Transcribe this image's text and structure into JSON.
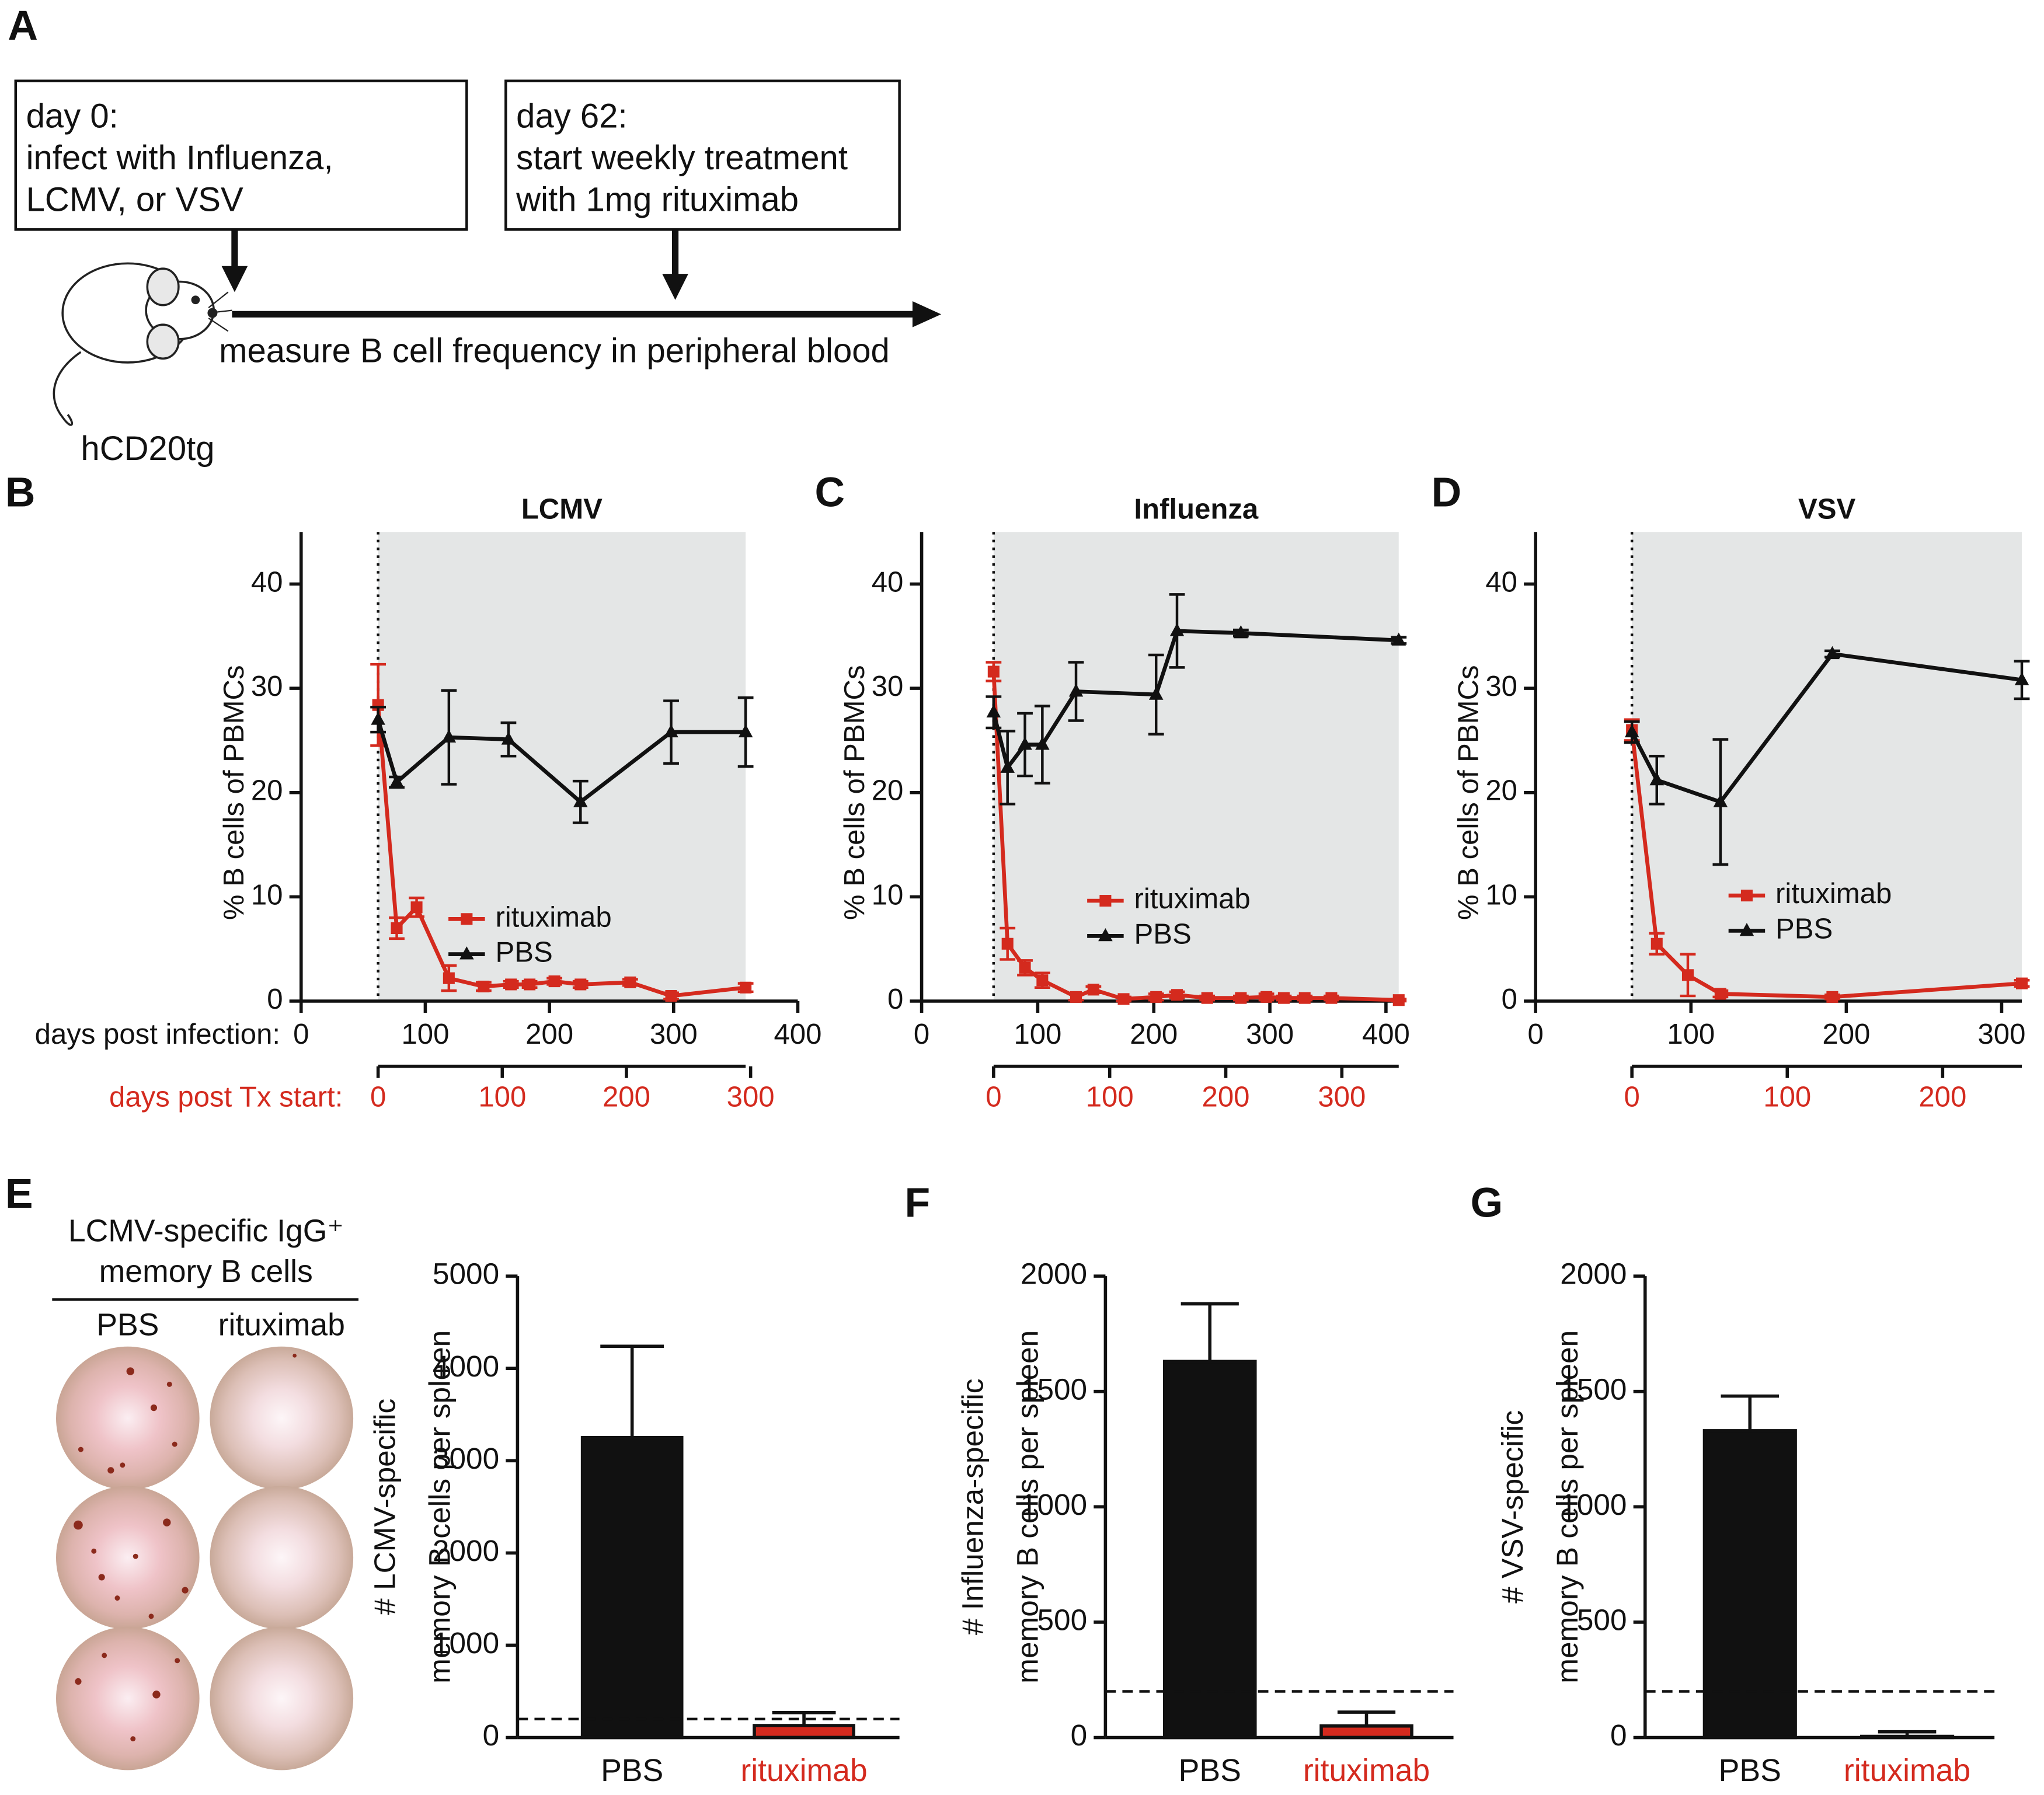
{
  "schematic": {
    "label": "A",
    "box1": [
      "day 0:",
      "infect with Influenza,",
      "LCMV, or VSV"
    ],
    "box2": [
      "day 62:",
      "start weekly treatment",
      "with 1mg rituximab"
    ],
    "timeline_label": "measure B cell frequency in peripheral blood",
    "mouse_label": "hCD20tg"
  },
  "wells": {
    "label": "E",
    "title": [
      "LCMV-specific IgG⁺",
      "memory B cells"
    ],
    "columns": [
      "PBS",
      "rituximab"
    ],
    "column_colors": [
      "#111111",
      "#c0281c"
    ]
  },
  "chart_data": [
    {
      "type": "line",
      "panel": "B",
      "title": "LCMV",
      "ylabel": "% B cells of PBMCs",
      "xlabel": "days post infection:",
      "x2label": "days post Tx start:",
      "x2_color": "#d42a1e",
      "xlim": [
        0,
        400
      ],
      "xticks": [
        0,
        100,
        200,
        300,
        400
      ],
      "x2lim": [
        -62,
        338
      ],
      "x2ticks": [
        0,
        100,
        200,
        300
      ],
      "ylim": [
        0,
        45
      ],
      "yticks": [
        0,
        10,
        20,
        30,
        40
      ],
      "treatment_start": 62,
      "shade_end": 358,
      "shade_color": "#e4e6e6",
      "series": [
        {
          "name": "rituximab",
          "color": "#d42a1e",
          "marker": "square",
          "x": [
            62,
            77,
            93,
            119,
            147,
            169,
            184,
            204,
            225,
            265,
            298,
            358
          ],
          "values": [
            28.4,
            7.0,
            9.0,
            2.2,
            1.4,
            1.6,
            1.6,
            1.9,
            1.6,
            1.8,
            0.5,
            1.3
          ],
          "errors": [
            3.9,
            1.0,
            0.9,
            1.2,
            0.4,
            0.3,
            0.3,
            0.3,
            0.3,
            0.3,
            0.3,
            0.4
          ]
        },
        {
          "name": "PBS",
          "color": "#111111",
          "marker": "triangle",
          "x": [
            62,
            77,
            119,
            167,
            225,
            298,
            358
          ],
          "values": [
            27.0,
            21.0,
            25.3,
            25.1,
            19.1,
            25.8,
            25.8
          ],
          "errors": [
            1.2,
            0.5,
            4.5,
            1.6,
            2.0,
            3.0,
            3.3
          ]
        }
      ]
    },
    {
      "type": "line",
      "panel": "C",
      "title": "Influenza",
      "ylabel": "% B cells of PBMCs",
      "x2_color": "#d42a1e",
      "xlim": [
        0,
        411
      ],
      "xticks": [
        0,
        100,
        200,
        300,
        400
      ],
      "x2lim": [
        -62,
        349
      ],
      "x2ticks": [
        0,
        100,
        200,
        300
      ],
      "ylim": [
        0,
        45
      ],
      "yticks": [
        0,
        10,
        20,
        30,
        40
      ],
      "treatment_start": 62,
      "shade_end": 411,
      "shade_color": "#e4e6e6",
      "series": [
        {
          "name": "rituximab",
          "color": "#d42a1e",
          "marker": "square",
          "x": [
            62,
            74,
            89,
            104,
            133,
            148,
            174,
            202,
            220,
            246,
            275,
            297,
            312,
            330,
            353,
            411
          ],
          "values": [
            31.6,
            5.5,
            3.2,
            2.0,
            0.4,
            1.1,
            0.2,
            0.4,
            0.6,
            0.3,
            0.3,
            0.4,
            0.3,
            0.3,
            0.3,
            0.1
          ],
          "errors": [
            0.9,
            1.5,
            0.7,
            0.7,
            0.3,
            0.3,
            0.2,
            0.3,
            0.3,
            0.2,
            0.2,
            0.3,
            0.2,
            0.2,
            0.2,
            0.1
          ]
        },
        {
          "name": "PBS",
          "color": "#111111",
          "marker": "triangle",
          "x": [
            62,
            74,
            89,
            104,
            133,
            202,
            220,
            275,
            411
          ],
          "values": [
            27.7,
            22.4,
            24.6,
            24.6,
            29.7,
            29.4,
            35.5,
            35.3,
            34.6
          ],
          "errors": [
            1.5,
            3.5,
            3.0,
            3.7,
            2.8,
            3.8,
            3.5,
            0.3,
            0.3
          ]
        }
      ]
    },
    {
      "type": "line",
      "panel": "D",
      "title": "VSV",
      "ylabel": "% B cells of PBMCs",
      "x2_color": "#d42a1e",
      "xlim": [
        0,
        313
      ],
      "xticks": [
        0,
        100,
        200,
        300
      ],
      "x2lim": [
        -62,
        251
      ],
      "x2ticks": [
        0,
        100,
        200
      ],
      "ylim": [
        0,
        45
      ],
      "yticks": [
        0,
        10,
        20,
        30,
        40
      ],
      "treatment_start": 62,
      "shade_end": 313,
      "shade_color": "#e4e6e6",
      "series": [
        {
          "name": "rituximab",
          "color": "#d42a1e",
          "marker": "square",
          "x": [
            62,
            78,
            98,
            119,
            191,
            313
          ],
          "values": [
            26.0,
            5.5,
            2.5,
            0.7,
            0.4,
            1.7
          ],
          "errors": [
            1.0,
            1.0,
            2.0,
            0.3,
            0.2,
            0.3
          ]
        },
        {
          "name": "PBS",
          "color": "#111111",
          "marker": "triangle",
          "x": [
            62,
            78,
            119,
            191,
            313
          ],
          "values": [
            25.8,
            21.2,
            19.1,
            33.3,
            30.8
          ],
          "errors": [
            1.0,
            2.3,
            6.0,
            0.3,
            1.8
          ]
        }
      ]
    },
    {
      "type": "bar",
      "ylabel": [
        "# LCMV-specific",
        "memory B cells per spleen"
      ],
      "categories": [
        "PBS",
        "rituximab"
      ],
      "category_colors": [
        "#111111",
        "#d42a1e"
      ],
      "colors": [
        "#111111",
        "#d42a1e"
      ],
      "values": [
        3250,
        130
      ],
      "errors": [
        990,
        140
      ],
      "ylim": [
        0,
        5000
      ],
      "yticks": [
        0,
        1000,
        2000,
        3000,
        4000,
        5000
      ],
      "dashed_line": 200
    },
    {
      "type": "bar",
      "panel": "F",
      "ylabel": [
        "# Influenza-specific",
        "memory B cells per spleen"
      ],
      "categories": [
        "PBS",
        "rituximab"
      ],
      "category_colors": [
        "#111111",
        "#d42a1e"
      ],
      "colors": [
        "#111111",
        "#d42a1e"
      ],
      "values": [
        1630,
        50
      ],
      "errors": [
        250,
        60
      ],
      "ylim": [
        0,
        2000
      ],
      "yticks": [
        0,
        500,
        1000,
        1500,
        2000
      ],
      "dashed_line": 200
    },
    {
      "type": "bar",
      "panel": "G",
      "ylabel": [
        "# VSV-specific",
        "memory B cells per spleen"
      ],
      "categories": [
        "PBS",
        "rituximab"
      ],
      "category_colors": [
        "#111111",
        "#d42a1e"
      ],
      "colors": [
        "#111111",
        "#d42a1e"
      ],
      "values": [
        1330,
        5
      ],
      "errors": [
        150,
        20
      ],
      "ylim": [
        0,
        2000
      ],
      "yticks": [
        0,
        500,
        1000,
        1500,
        2000
      ],
      "dashed_line": 200
    }
  ]
}
